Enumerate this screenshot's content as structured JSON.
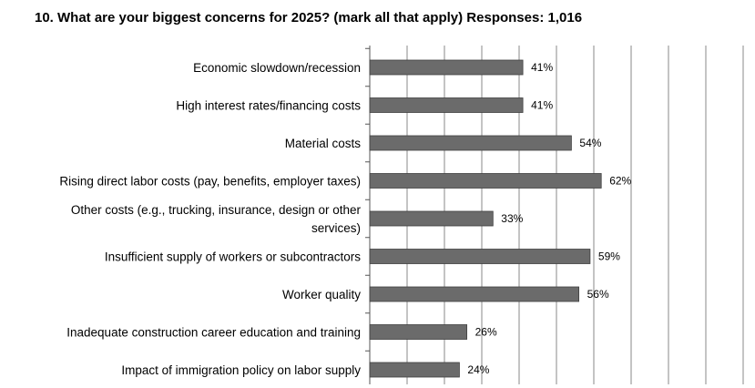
{
  "chart_data": {
    "type": "bar",
    "orientation": "horizontal",
    "title": "10. What are your biggest concerns for 2025? (mark all that apply) Responses: 1,016",
    "categories": [
      [
        "Economic slowdown/recession"
      ],
      [
        "High interest rates/financing costs"
      ],
      [
        "Material costs"
      ],
      [
        "Rising direct labor costs (pay, benefits, employer taxes)"
      ],
      [
        "Other costs (e.g., trucking, insurance, design or other",
        "services)"
      ],
      [
        "Insufficient supply of workers or subcontractors"
      ],
      [
        "Worker quality"
      ],
      [
        "Inadequate construction career education and training"
      ],
      [
        "Impact of immigration policy on labor supply"
      ]
    ],
    "values": [
      41,
      41,
      54,
      62,
      33,
      59,
      56,
      26,
      24
    ],
    "value_labels": [
      "41%",
      "41%",
      "54%",
      "62%",
      "33%",
      "59%",
      "56%",
      "26%",
      "24%"
    ],
    "xlim": [
      0,
      100
    ],
    "grid": true,
    "legend": "none",
    "colors": {
      "bar": "#6b6b6b",
      "bar_edge": "#3f3f3f",
      "grid": "#8a8a8a",
      "axis": "#555555"
    }
  }
}
